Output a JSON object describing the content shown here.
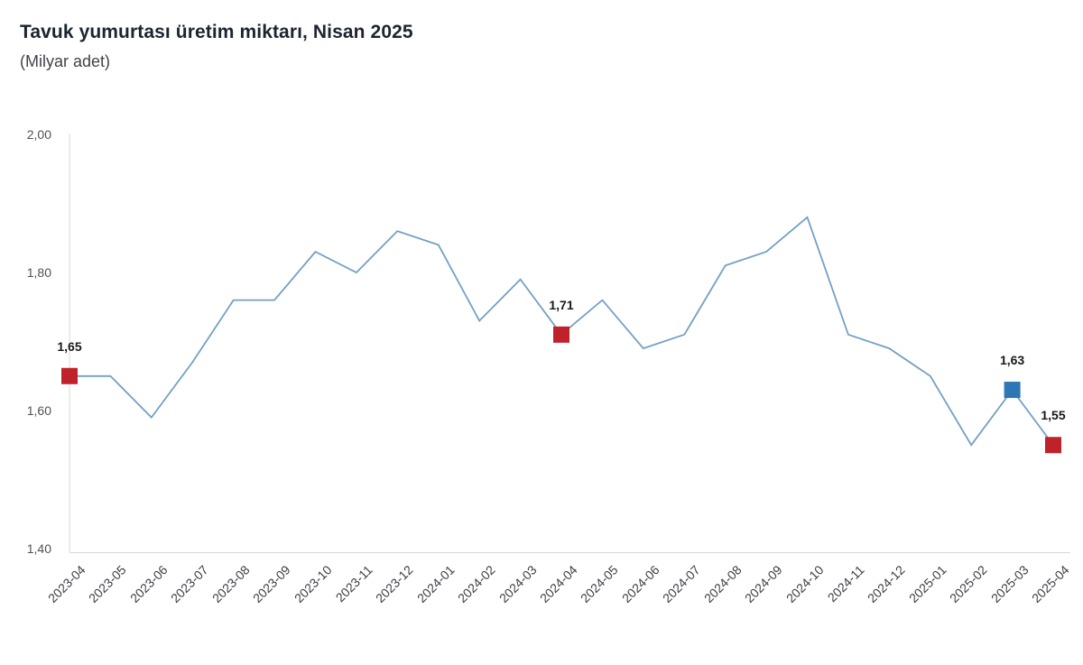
{
  "header": {
    "title": "Tavuk yumurtası üretim miktarı, Nisan 2025",
    "subtitle": "(Milyar adet)"
  },
  "chart_data": {
    "type": "line",
    "title": "Tavuk yumurtası üretim miktarı, Nisan 2025",
    "subtitle": "(Milyar adet)",
    "xlabel": "",
    "ylabel": "Milyar adet",
    "x": [
      "2023-04",
      "2023-05",
      "2023-06",
      "2023-07",
      "2023-08",
      "2023-09",
      "2023-10",
      "2023-11",
      "2023-12",
      "2024-01",
      "2024-02",
      "2024-03",
      "2024-04",
      "2024-05",
      "2024-06",
      "2024-07",
      "2024-08",
      "2024-09",
      "2024-10",
      "2024-11",
      "2024-12",
      "2025-01",
      "2025-02",
      "2025-03",
      "2025-04"
    ],
    "values": [
      1.65,
      1.65,
      1.59,
      1.67,
      1.76,
      1.76,
      1.83,
      1.8,
      1.86,
      1.84,
      1.73,
      1.79,
      1.71,
      1.76,
      1.69,
      1.71,
      1.81,
      1.83,
      1.88,
      1.71,
      1.69,
      1.65,
      1.55,
      1.63,
      1.55
    ],
    "ylim": [
      1.4,
      2.0
    ],
    "yticks": [
      2.0,
      1.8,
      1.6,
      1.4
    ],
    "ytick_labels": [
      "2,00",
      "1,80",
      "1,60",
      "1,40"
    ],
    "grid": false,
    "legend": "none",
    "line_color": "#74A0C3",
    "axis_color": "#D8D8D8",
    "marked_points": [
      {
        "x": "2023-04",
        "value": 1.65,
        "label": "1,65",
        "color": "#C0222C"
      },
      {
        "x": "2024-04",
        "value": 1.71,
        "label": "1,71",
        "color": "#C0222C"
      },
      {
        "x": "2025-03",
        "value": 1.63,
        "label": "1,63",
        "color": "#2E76B6"
      },
      {
        "x": "2025-04",
        "value": 1.55,
        "label": "1,55",
        "color": "#C0222C"
      }
    ]
  }
}
